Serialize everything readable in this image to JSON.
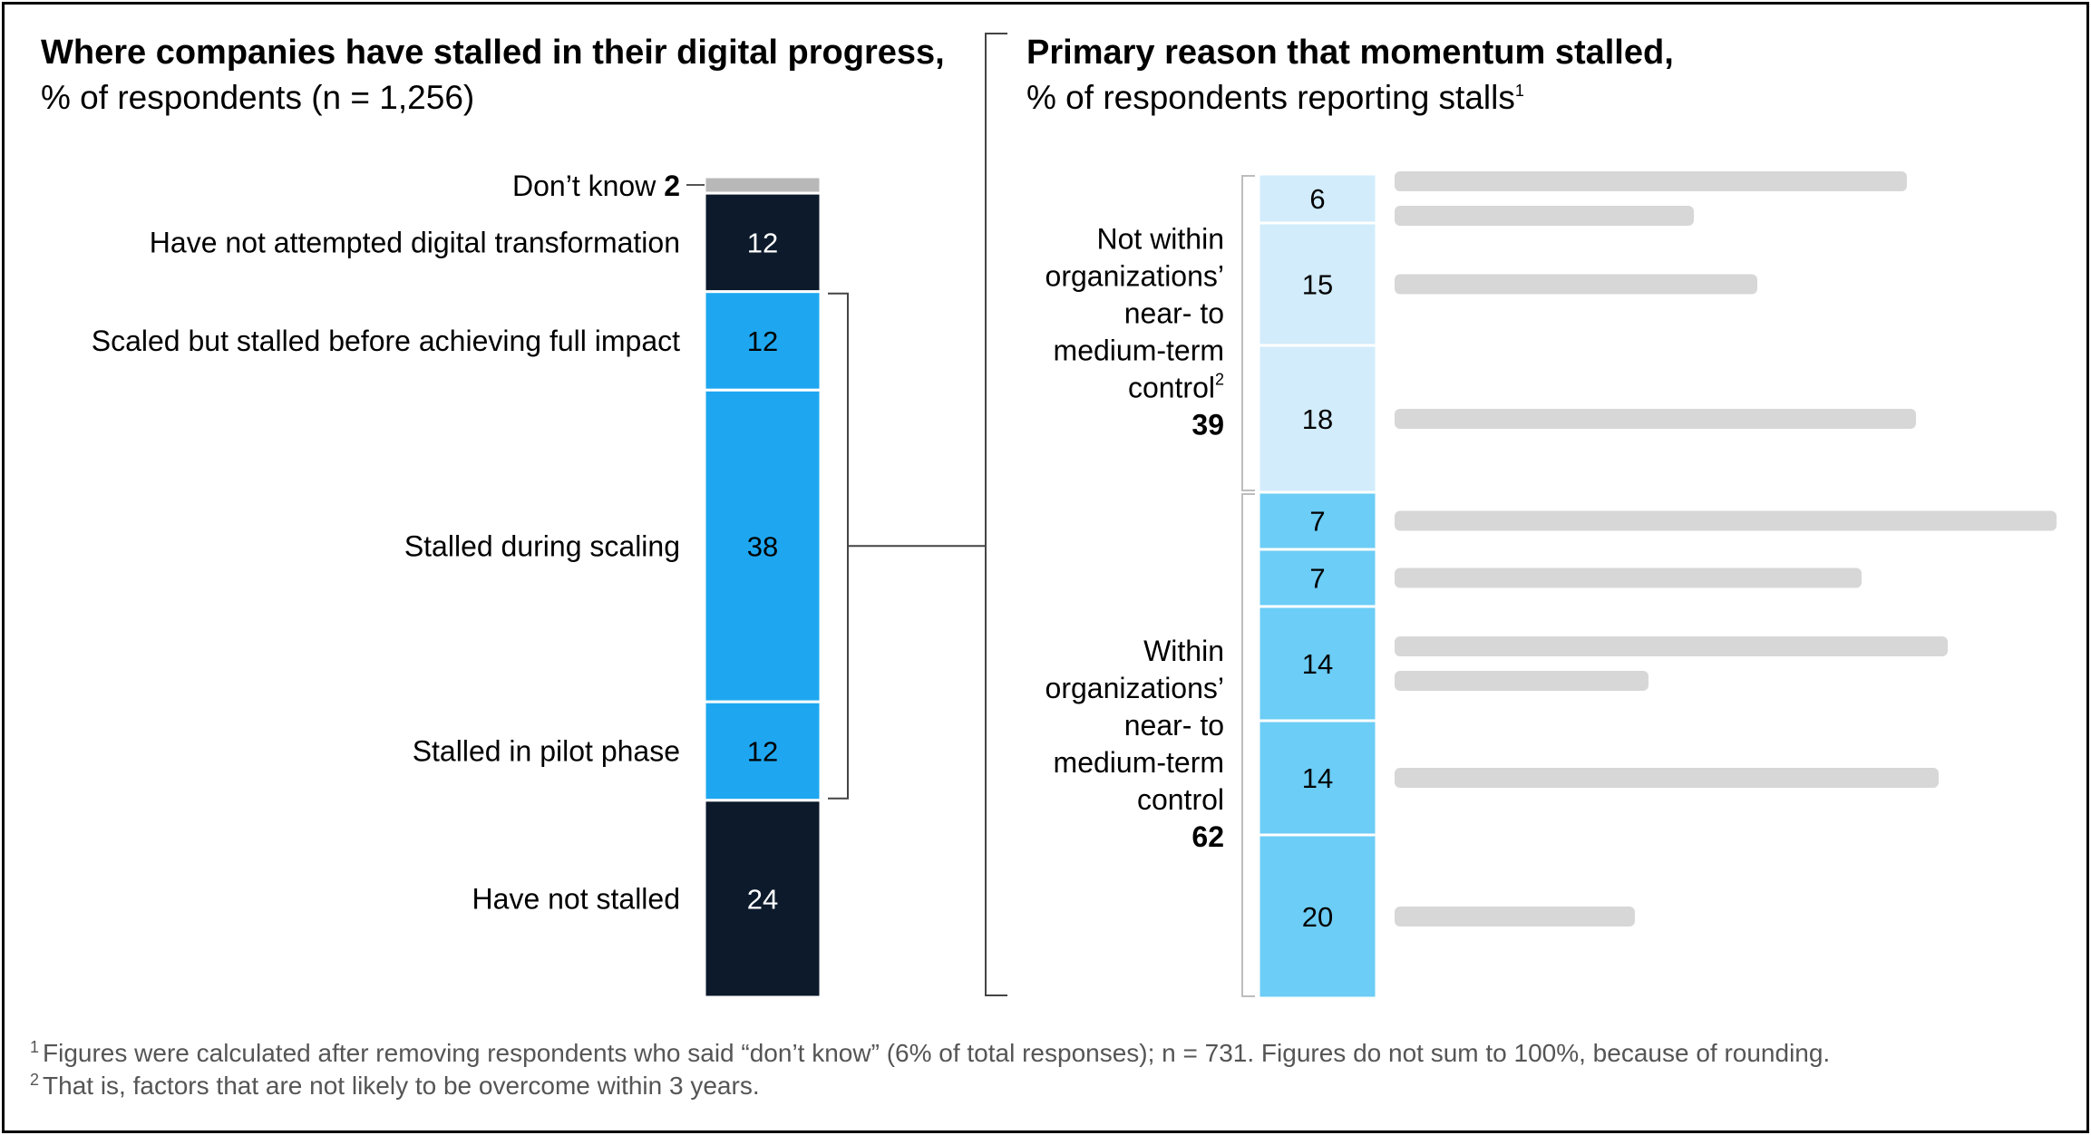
{
  "left": {
    "title": "Where companies have stalled in their digital progress,",
    "subtitle": "% of respondents (n = 1,256)"
  },
  "right": {
    "title": "Primary reason that momentum stalled,",
    "subtitle": "% of respondents reporting stalls",
    "subtitle_sup": "1"
  },
  "colors": {
    "gray": "#b8b8b8",
    "navy": "#0c1a2b",
    "blue": "#1ea7f0",
    "light_blue": "#d2ecfb",
    "mid_blue": "#6ccdf6",
    "bracket": "#444444",
    "blur": "#d0d0d0"
  },
  "chart_data": [
    {
      "type": "bar",
      "stacked": true,
      "categories": [
        "Don’t know",
        "Have not attempted digital transformation",
        "Scaled but stalled before achieving full impact",
        "Stalled during scaling",
        "Stalled in pilot phase",
        "Have not stalled"
      ],
      "values": [
        2,
        12,
        12,
        38,
        12,
        24
      ],
      "colors": [
        "#b8b8b8",
        "#0c1a2b",
        "#1ea7f0",
        "#1ea7f0",
        "#1ea7f0",
        "#0c1a2b"
      ],
      "ylim": [
        0,
        100
      ]
    },
    {
      "type": "bar",
      "stacked": true,
      "categories": [
        "",
        "",
        "",
        "",
        "",
        "",
        "",
        ""
      ],
      "values": [
        6,
        15,
        18,
        7,
        7,
        14,
        14,
        20
      ],
      "colors": [
        "#d2ecfb",
        "#d2ecfb",
        "#d2ecfb",
        "#6ccdf6",
        "#6ccdf6",
        "#6ccdf6",
        "#6ccdf6",
        "#6ccdf6"
      ],
      "groups": [
        {
          "lines": [
            "Not within",
            "organizations’",
            "near- to",
            "medium-term",
            "control"
          ],
          "sup": "2",
          "total": "39"
        },
        {
          "lines": [
            "Within",
            "organizations’",
            "near- to",
            "medium-term",
            "control"
          ],
          "sup": "",
          "total": "62"
        }
      ],
      "ylim": [
        0,
        101
      ]
    }
  ],
  "footnotes": [
    {
      "mark": "1",
      "text": "Figures were calculated after removing respondents who said “don’t know” (6% of total responses); n = 731. Figures do not sum to 100%, because of rounding."
    },
    {
      "mark": "2",
      "text": "That is, factors that are not likely to be overcome within 3 years."
    }
  ]
}
